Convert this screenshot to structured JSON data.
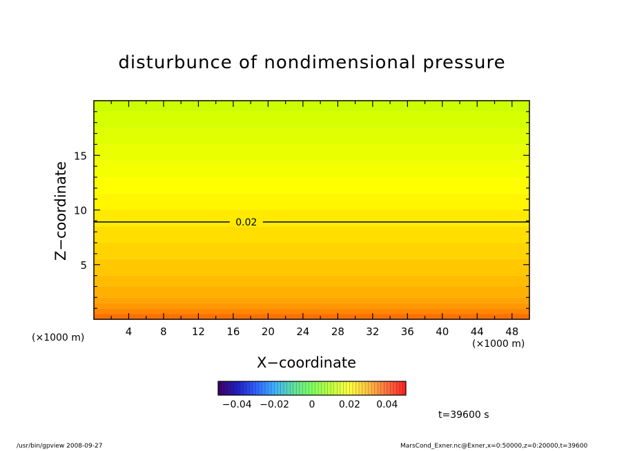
{
  "chart_data": {
    "type": "heatmap",
    "title": "disturbunce of nondimensional pressure",
    "xlabel": "X−coordinate",
    "ylabel": "Z−coordinate",
    "x_unit_left": "(×1000 m)",
    "x_unit_right": "(×1000 m)",
    "xlim": [
      0,
      50
    ],
    "ylim": [
      0,
      20
    ],
    "x_ticks": [
      4,
      8,
      12,
      16,
      20,
      24,
      28,
      32,
      36,
      40,
      44,
      48
    ],
    "y_ticks": [
      5,
      10,
      15
    ],
    "x_minor_step": 2,
    "y_minor_step": 1,
    "contours": [
      {
        "level": 0.02,
        "label": "0.02",
        "z": 8.9,
        "label_x": 17.5
      }
    ],
    "color_levels": [
      {
        "z0": 0.0,
        "z1": 0.5,
        "value": 0.04,
        "color": "#ff7000"
      },
      {
        "z0": 0.5,
        "z1": 1.0,
        "value": 0.037,
        "color": "#ff8800"
      },
      {
        "z0": 1.0,
        "z1": 1.5,
        "value": 0.035,
        "color": "#ff9800"
      },
      {
        "z0": 1.5,
        "z1": 2.0,
        "value": 0.033,
        "color": "#ffa400"
      },
      {
        "z0": 2.0,
        "z1": 3.0,
        "value": 0.031,
        "color": "#ffb000"
      },
      {
        "z0": 3.0,
        "z1": 4.0,
        "value": 0.029,
        "color": "#ffbc00"
      },
      {
        "z0": 4.0,
        "z1": 5.5,
        "value": 0.027,
        "color": "#ffc800"
      },
      {
        "z0": 5.5,
        "z1": 7.0,
        "value": 0.025,
        "color": "#ffd400"
      },
      {
        "z0": 7.0,
        "z1": 8.5,
        "value": 0.022,
        "color": "#ffde00"
      },
      {
        "z0": 8.5,
        "z1": 10.0,
        "value": 0.02,
        "color": "#ffea00"
      },
      {
        "z0": 10.0,
        "z1": 11.5,
        "value": 0.018,
        "color": "#fff600"
      },
      {
        "z0": 11.5,
        "z1": 13.0,
        "value": 0.016,
        "color": "#ffff00"
      },
      {
        "z0": 13.0,
        "z1": 14.5,
        "value": 0.014,
        "color": "#f4ff00"
      },
      {
        "z0": 14.5,
        "z1": 16.0,
        "value": 0.012,
        "color": "#eaff00"
      },
      {
        "z0": 16.0,
        "z1": 17.5,
        "value": 0.01,
        "color": "#e0ff00"
      },
      {
        "z0": 17.5,
        "z1": 19.0,
        "value": 0.008,
        "color": "#d6ff00"
      },
      {
        "z0": 19.0,
        "z1": 20.0,
        "value": 0.006,
        "color": "#ccff00"
      }
    ],
    "colorbar": {
      "range": [
        -0.05,
        0.05
      ],
      "tick_values": [
        -0.04,
        -0.02,
        0,
        0.02,
        0.04
      ],
      "tick_labels": [
        "−0.04",
        "−0.02",
        "0",
        "0.02",
        "0.04"
      ],
      "stops": [
        {
          "v": -0.05,
          "color": "#400060"
        },
        {
          "v": -0.04,
          "color": "#2020c0"
        },
        {
          "v": -0.03,
          "color": "#3060ff"
        },
        {
          "v": -0.02,
          "color": "#40b0ff"
        },
        {
          "v": -0.01,
          "color": "#60e0a0"
        },
        {
          "v": 0.0,
          "color": "#80ff60"
        },
        {
          "v": 0.01,
          "color": "#c0ff40"
        },
        {
          "v": 0.02,
          "color": "#ffff40"
        },
        {
          "v": 0.03,
          "color": "#ffc040"
        },
        {
          "v": 0.04,
          "color": "#ff7040"
        },
        {
          "v": 0.05,
          "color": "#ff2020"
        }
      ]
    }
  },
  "time_label": "t=39600 s",
  "footer": {
    "left": "/usr/bin/gpview   2008-09-27",
    "right": "MarsCond_Exner.nc@Exner,x=0:50000,z=0:20000,t=39600"
  }
}
